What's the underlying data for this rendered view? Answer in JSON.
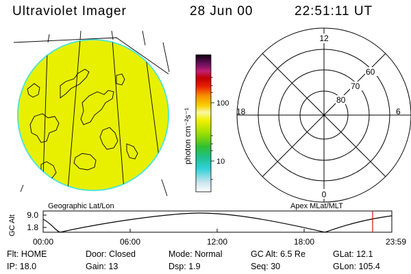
{
  "header": {
    "title": "Ultraviolet Imager",
    "date": "28 Jun 00",
    "time": "22:51:11 UT"
  },
  "colors": {
    "disk_fill": "#e8f000",
    "disk_edge": "#53e6d0",
    "timeline_marker": "#d01010",
    "grid": "#000000"
  },
  "colorbar": {
    "unit_label": "photon cm⁻²s⁻¹",
    "ticks": [
      "100",
      "10"
    ],
    "scale": "log"
  },
  "polar_plot": {
    "mlt_labels": [
      "12",
      "18",
      "6",
      "0"
    ],
    "mlat_labels": [
      "80",
      "70",
      "60"
    ]
  },
  "map_labels": {
    "left": "Geographic Lat/Lon",
    "right": "Apex MLat/MLT"
  },
  "altitude_plot": {
    "ylabel": "GC Alt",
    "yticks": [
      "9.0",
      "1.8"
    ],
    "xticks": [
      "00:00",
      "06:00",
      "12:00",
      "18:00",
      "23:59"
    ]
  },
  "info_rows": [
    [
      {
        "label": "Flt:",
        "value": "HOME"
      },
      {
        "label": "Door:",
        "value": "Closed"
      },
      {
        "label": "Mode:",
        "value": "Normal"
      },
      {
        "label": "GC Alt:",
        "value": "6.5 Re"
      },
      {
        "label": "GLat:",
        "value": "12.1"
      }
    ],
    [
      {
        "label": "IP:",
        "value": "18.0"
      },
      {
        "label": "Gain:",
        "value": "13"
      },
      {
        "label": "Dsp:",
        "value": "1.9"
      },
      {
        "label": "Seq:",
        "value": "30"
      },
      {
        "label": "GLon:",
        "value": "105.4"
      }
    ]
  ]
}
